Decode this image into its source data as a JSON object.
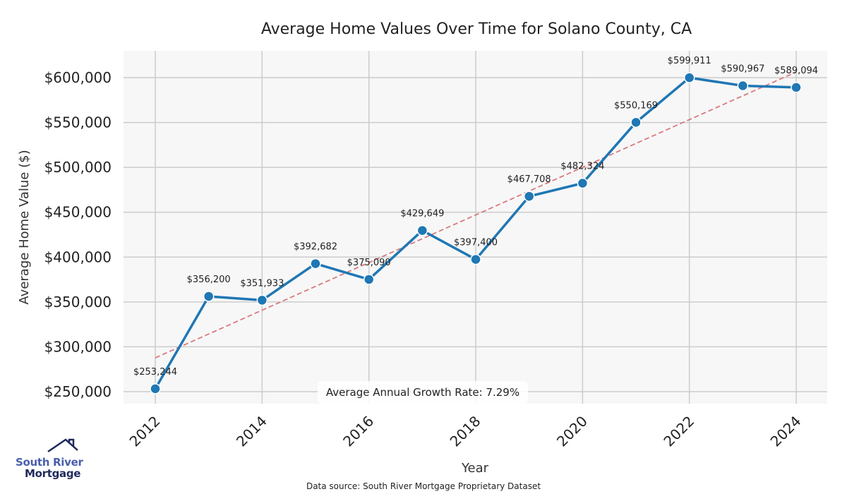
{
  "chart_data": {
    "type": "line",
    "title": "Average Home Values Over Time for Solano County, CA",
    "xlabel": "Year",
    "ylabel": "Average Home Value ($)",
    "x": [
      2012,
      2013,
      2014,
      2015,
      2016,
      2017,
      2018,
      2019,
      2020,
      2021,
      2022,
      2023,
      2024
    ],
    "series": [
      {
        "name": "Average Home Value",
        "color": "#1f77b4",
        "values": [
          253244,
          356200,
          351933,
          392682,
          375090,
          429649,
          397400,
          467708,
          482324,
          550169,
          599911,
          590967,
          589094
        ],
        "labels": [
          "$253,244",
          "$356,200",
          "$351,933",
          "$392,682",
          "$375,090",
          "$429,649",
          "$397,400",
          "$467,708",
          "$482,324",
          "$550,169",
          "$599,911",
          "$590,967",
          "$589,094"
        ]
      },
      {
        "name": "Trend",
        "color": "#d9797e",
        "style": "dashed",
        "x": [
          2012,
          2024
        ],
        "values": [
          287700,
          606300
        ]
      }
    ],
    "xticks": [
      "2012",
      "2014",
      "2016",
      "2018",
      "2020",
      "2022",
      "2024"
    ],
    "yticks": [
      {
        "value": 250000,
        "label": "$250,000"
      },
      {
        "value": 300000,
        "label": "$300,000"
      },
      {
        "value": 350000,
        "label": "$350,000"
      },
      {
        "value": 400000,
        "label": "$400,000"
      },
      {
        "value": 450000,
        "label": "$450,000"
      },
      {
        "value": 500000,
        "label": "$500,000"
      },
      {
        "value": 550000,
        "label": "$550,000"
      },
      {
        "value": 600000,
        "label": "$600,000"
      }
    ],
    "grid": true,
    "annotation": "Average Annual Growth Rate: 7.29%",
    "source": "Data source: South River Mortgage Proprietary Dataset"
  },
  "logo": {
    "line1": "South River",
    "line2": "Mortgage"
  }
}
